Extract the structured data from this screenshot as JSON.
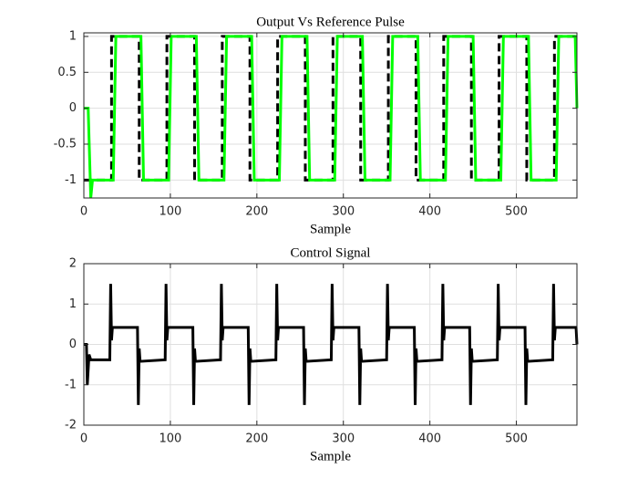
{
  "chart_data": [
    {
      "type": "line",
      "title": "Output Vs Reference Pulse",
      "x_label": "Sample",
      "xlim": [
        0,
        570
      ],
      "xticks": [
        0,
        100,
        200,
        300,
        400,
        500
      ],
      "ylim": [
        -1.25,
        1.05
      ],
      "yticks": [
        -1,
        -0.5,
        0,
        0.5,
        1
      ],
      "grid": true,
      "series": [
        {
          "color": "#000000",
          "style": "dashed",
          "x": [
            0,
            32,
            32,
            64,
            64,
            96,
            96,
            128,
            128,
            160,
            160,
            192,
            192,
            224,
            224,
            256,
            256,
            288,
            288,
            320,
            320,
            352,
            352,
            384,
            384,
            416,
            416,
            448,
            448,
            480,
            480,
            512,
            512,
            544,
            544,
            570
          ],
          "values": [
            -1,
            -1,
            1,
            1,
            -1,
            -1,
            1,
            1,
            -1,
            -1,
            1,
            1,
            -1,
            -1,
            1,
            1,
            -1,
            -1,
            1,
            1,
            -1,
            -1,
            1,
            1,
            -1,
            -1,
            1,
            1,
            -1,
            -1,
            1,
            1,
            -1,
            -1,
            1,
            1
          ]
        },
        {
          "color": "#00ff00",
          "style": "solid",
          "x": [
            0,
            5,
            8,
            10,
            34,
            37,
            66,
            69,
            98,
            101,
            130,
            133,
            162,
            165,
            194,
            197,
            226,
            229,
            258,
            261,
            290,
            293,
            322,
            325,
            354,
            357,
            386,
            389,
            418,
            421,
            450,
            453,
            482,
            485,
            514,
            517,
            546,
            549,
            568,
            570
          ],
          "values": [
            0,
            0,
            -1.25,
            -1,
            -1,
            1,
            1,
            -1,
            -1,
            1,
            1,
            -1,
            -1,
            1,
            1,
            -1,
            -1,
            1,
            1,
            -1,
            -1,
            1,
            1,
            -1,
            -1,
            1,
            1,
            -1,
            -1,
            1,
            1,
            -1,
            -1,
            1,
            1,
            -1,
            -1,
            1,
            1,
            0
          ]
        }
      ]
    },
    {
      "type": "line",
      "title": "Control Signal",
      "x_label": "Sample",
      "xlim": [
        0,
        570
      ],
      "xticks": [
        0,
        100,
        200,
        300,
        400,
        500
      ],
      "ylim": [
        -2,
        2
      ],
      "yticks": [
        -2,
        -1,
        0,
        1,
        2
      ],
      "grid": true,
      "series": [
        {
          "color": "#000000",
          "style": "solid",
          "x": [
            0,
            3,
            4,
            6,
            8,
            30,
            31,
            32,
            33,
            62,
            63,
            64,
            65,
            94,
            95,
            96,
            97,
            126,
            127,
            128,
            129,
            158,
            159,
            160,
            161,
            190,
            191,
            192,
            193,
            222,
            223,
            224,
            225,
            254,
            255,
            256,
            257,
            286,
            287,
            288,
            289,
            318,
            319,
            320,
            321,
            350,
            351,
            352,
            353,
            382,
            383,
            384,
            385,
            414,
            415,
            416,
            417,
            446,
            447,
            448,
            449,
            478,
            479,
            480,
            481,
            510,
            511,
            512,
            513,
            542,
            543,
            544,
            545,
            569,
            570
          ],
          "values": [
            0,
            0,
            -1,
            -0.25,
            -0.38,
            -0.38,
            1.5,
            0.1,
            0.42,
            0.42,
            -1.5,
            -0.1,
            -0.42,
            -0.38,
            1.5,
            0.1,
            0.42,
            0.42,
            -1.5,
            -0.1,
            -0.42,
            -0.38,
            1.5,
            0.1,
            0.42,
            0.42,
            -1.5,
            -0.1,
            -0.42,
            -0.38,
            1.5,
            0.1,
            0.42,
            0.42,
            -1.5,
            -0.1,
            -0.42,
            -0.38,
            1.5,
            0.1,
            0.42,
            0.42,
            -1.5,
            -0.1,
            -0.42,
            -0.38,
            1.5,
            0.1,
            0.42,
            0.42,
            -1.5,
            -0.1,
            -0.42,
            -0.38,
            1.5,
            0.1,
            0.42,
            0.42,
            -1.5,
            -0.1,
            -0.42,
            -0.38,
            1.5,
            0.1,
            0.42,
            0.42,
            -1.5,
            -0.1,
            -0.42,
            -0.38,
            1.5,
            0.1,
            0.42,
            0.42,
            0
          ]
        }
      ]
    }
  ]
}
